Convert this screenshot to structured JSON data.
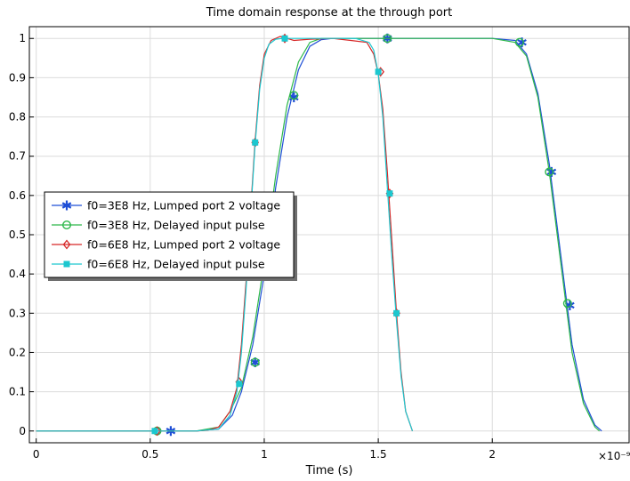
{
  "chart_data": {
    "type": "line",
    "title": "Time domain response at the through port",
    "xlabel": "Time (s)",
    "ylabel": "",
    "x_multiplier": "×10⁻⁹",
    "xlim": [
      -0.03,
      2.6
    ],
    "ylim": [
      -0.03,
      1.03
    ],
    "x_ticks": [
      0,
      0.5,
      1,
      1.5,
      2
    ],
    "x_tick_labels": [
      "0",
      "0.5",
      "1",
      "1.5",
      "2"
    ],
    "y_ticks": [
      0,
      0.1,
      0.2,
      0.3,
      0.4,
      0.5,
      0.6,
      0.7,
      0.8,
      0.9,
      1
    ],
    "y_tick_labels": [
      "0",
      "0.1",
      "0.2",
      "0.3",
      "0.4",
      "0.5",
      "0.6",
      "0.7",
      "0.8",
      "0.9",
      "1"
    ],
    "grid": true,
    "legend_position": "center-left",
    "series": [
      {
        "name": "f0=3E8 Hz, Lumped port 2 voltage",
        "color": "#1f4fd6",
        "marker": "asterisk",
        "x": [
          0,
          0.5,
          0.6,
          0.7,
          0.8,
          0.86,
          0.9,
          0.95,
          1.0,
          1.05,
          1.1,
          1.15,
          1.2,
          1.25,
          1.3,
          1.5,
          1.8,
          2.0,
          2.1,
          2.15,
          2.2,
          2.25,
          2.3,
          2.35,
          2.4,
          2.45,
          2.48
        ],
        "y": [
          0,
          0,
          0,
          0,
          0.005,
          0.04,
          0.1,
          0.22,
          0.4,
          0.62,
          0.8,
          0.92,
          0.98,
          0.997,
          1,
          1,
          1,
          1,
          0.995,
          0.96,
          0.86,
          0.68,
          0.45,
          0.22,
          0.08,
          0.015,
          0
        ],
        "markers_x": [
          0.59,
          0.96,
          1.13,
          1.54,
          2.13,
          2.26,
          2.34
        ],
        "markers_y": [
          0,
          0.175,
          0.85,
          1,
          0.99,
          0.66,
          0.32
        ]
      },
      {
        "name": "f0=3E8 Hz, Delayed input pulse",
        "color": "#2db84a",
        "marker": "circle",
        "x": [
          0,
          0.5,
          0.6,
          0.7,
          0.8,
          0.85,
          0.9,
          0.95,
          1.0,
          1.05,
          1.1,
          1.15,
          1.2,
          1.25,
          1.3,
          1.5,
          1.8,
          2.0,
          2.1,
          2.15,
          2.2,
          2.25,
          2.3,
          2.35,
          2.4,
          2.45,
          2.47
        ],
        "y": [
          0,
          0,
          0,
          0,
          0.01,
          0.05,
          0.11,
          0.24,
          0.43,
          0.65,
          0.83,
          0.94,
          0.99,
          1,
          1,
          1,
          1,
          1,
          0.99,
          0.955,
          0.85,
          0.66,
          0.43,
          0.2,
          0.07,
          0.01,
          0
        ],
        "markers_x": [
          0.53,
          0.96,
          1.13,
          1.54,
          2.12,
          2.25,
          2.33
        ],
        "markers_y": [
          0,
          0.175,
          0.855,
          1,
          0.99,
          0.66,
          0.325
        ]
      },
      {
        "name": "f0=6E8 Hz, Lumped port 2 voltage",
        "color": "#d62828",
        "marker": "diamond",
        "x": [
          0,
          0.5,
          0.6,
          0.7,
          0.75,
          0.8,
          0.85,
          0.88,
          0.9,
          0.92,
          0.94,
          0.96,
          0.98,
          1.0,
          1.03,
          1.07,
          1.1,
          1.13,
          1.2,
          1.3,
          1.38,
          1.45,
          1.48,
          1.5,
          1.52,
          1.54,
          1.56,
          1.58,
          1.6,
          1.62,
          1.65
        ],
        "y": [
          0,
          0,
          0,
          0,
          0.002,
          0.01,
          0.05,
          0.11,
          0.22,
          0.38,
          0.56,
          0.74,
          0.88,
          0.96,
          0.995,
          1.005,
          1.0,
          0.995,
          0.998,
          1.0,
          0.995,
          0.99,
          0.96,
          0.91,
          0.82,
          0.66,
          0.48,
          0.3,
          0.15,
          0.05,
          0
        ],
        "markers_x": [
          0.53,
          0.89,
          0.96,
          1.09,
          1.51,
          1.55,
          1.58
        ],
        "markers_y": [
          0,
          0.125,
          0.735,
          1,
          0.915,
          0.605,
          0.3
        ]
      },
      {
        "name": "f0=6E8 Hz, Delayed input pulse",
        "color": "#1cc7cf",
        "marker": "square",
        "x": [
          0,
          0.5,
          0.6,
          0.7,
          0.8,
          0.85,
          0.88,
          0.9,
          0.92,
          0.94,
          0.96,
          0.98,
          1.0,
          1.02,
          1.05,
          1.08,
          1.12,
          1.2,
          1.4,
          1.46,
          1.48,
          1.5,
          1.52,
          1.54,
          1.56,
          1.58,
          1.6,
          1.62,
          1.65
        ],
        "y": [
          0,
          0,
          0,
          0,
          0.005,
          0.04,
          0.1,
          0.2,
          0.36,
          0.55,
          0.73,
          0.87,
          0.95,
          0.985,
          0.998,
          1,
          1,
          1,
          1,
          0.99,
          0.97,
          0.91,
          0.8,
          0.62,
          0.44,
          0.28,
          0.14,
          0.05,
          0
        ],
        "markers_x": [
          0.52,
          0.89,
          0.96,
          1.09,
          1.5,
          1.55,
          1.58
        ],
        "markers_y": [
          0,
          0.12,
          0.735,
          1,
          0.915,
          0.605,
          0.3
        ]
      }
    ]
  }
}
